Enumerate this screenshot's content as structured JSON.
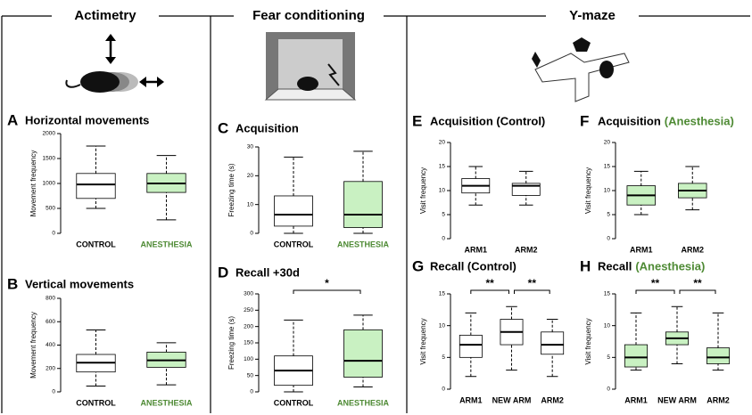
{
  "header": {
    "sections": [
      "Actimetry",
      "Fear conditioning",
      "Y-maze"
    ]
  },
  "chart_data": [
    {
      "type": "box",
      "panel": "A",
      "title": "Horizontal movements",
      "y_label": "Movement frequency",
      "categories": [
        "CONTROL",
        "ANESTHESIA"
      ],
      "category_colors": [
        "#000000",
        "#4e8a34"
      ],
      "ylim": [
        0,
        2000
      ],
      "yticks": [
        0,
        500,
        1000,
        1500,
        2000
      ],
      "boxes": [
        {
          "min": 500,
          "q1": 700,
          "median": 980,
          "q3": 1200,
          "max": 1750,
          "color": "#ffffff"
        },
        {
          "min": 270,
          "q1": 820,
          "median": 1000,
          "q3": 1200,
          "max": 1560,
          "color": "#c9f1c2"
        }
      ]
    },
    {
      "type": "box",
      "panel": "B",
      "title": "Vertical movements",
      "y_label": "Movement frequency",
      "categories": [
        "CONTROL",
        "ANESTHESIA"
      ],
      "category_colors": [
        "#000000",
        "#4e8a34"
      ],
      "ylim": [
        0,
        800
      ],
      "yticks": [
        0,
        200,
        400,
        600,
        800
      ],
      "boxes": [
        {
          "min": 50,
          "q1": 170,
          "median": 250,
          "q3": 320,
          "max": 530,
          "color": "#ffffff"
        },
        {
          "min": 60,
          "q1": 210,
          "median": 270,
          "q3": 340,
          "max": 420,
          "color": "#c9f1c2"
        }
      ]
    },
    {
      "type": "box",
      "panel": "C",
      "title": "Acquisition",
      "y_label": "Freezing time (s)",
      "categories": [
        "CONTROL",
        "ANESTHESIA"
      ],
      "category_colors": [
        "#000000",
        "#4e8a34"
      ],
      "ylim": [
        0,
        30
      ],
      "yticks": [
        0,
        10,
        20,
        30
      ],
      "boxes": [
        {
          "min": 0,
          "q1": 2.5,
          "median": 6.5,
          "q3": 13,
          "max": 26.5,
          "color": "#ffffff"
        },
        {
          "min": 0,
          "q1": 2,
          "median": 6.5,
          "q3": 18,
          "max": 28.5,
          "color": "#c9f1c2"
        }
      ]
    },
    {
      "type": "box",
      "panel": "D",
      "title": "Recall +30d",
      "y_label": "Freezing time (s)",
      "categories": [
        "CONTROL",
        "ANESTHESIA"
      ],
      "category_colors": [
        "#000000",
        "#4e8a34"
      ],
      "ylim": [
        0,
        300
      ],
      "yticks": [
        0,
        50,
        100,
        150,
        200,
        250,
        300
      ],
      "boxes": [
        {
          "min": 0,
          "q1": 20,
          "median": 65,
          "q3": 110,
          "max": 220,
          "color": "#ffffff"
        },
        {
          "min": 15,
          "q1": 45,
          "median": 95,
          "q3": 190,
          "max": 235,
          "color": "#c9f1c2"
        }
      ],
      "annotations": [
        {
          "text": "*",
          "between": [
            "CONTROL",
            "ANESTHESIA"
          ]
        }
      ]
    },
    {
      "type": "box",
      "panel": "E",
      "title": "Acquisition (Control)",
      "y_label": "Visit frequency",
      "categories": [
        "ARM1",
        "ARM2"
      ],
      "ylim": [
        0,
        20
      ],
      "yticks": [
        0,
        5,
        10,
        15,
        20
      ],
      "boxes": [
        {
          "min": 7,
          "q1": 9.5,
          "median": 11,
          "q3": 12.5,
          "max": 15,
          "color": "#ffffff"
        },
        {
          "min": 7,
          "q1": 9,
          "median": 11,
          "q3": 11.5,
          "max": 14,
          "color": "#ffffff"
        }
      ]
    },
    {
      "type": "box",
      "panel": "F",
      "title": "Acquisition",
      "title_suffix": "(Anesthesia)",
      "title_suffix_color": "#4e8a34",
      "y_label": "Visit frequency",
      "categories": [
        "ARM1",
        "ARM2"
      ],
      "ylim": [
        0,
        20
      ],
      "yticks": [
        0,
        5,
        10,
        15,
        20
      ],
      "boxes": [
        {
          "min": 5,
          "q1": 7,
          "median": 9,
          "q3": 11,
          "max": 14,
          "color": "#c9f1c2"
        },
        {
          "min": 6,
          "q1": 8.5,
          "median": 10,
          "q3": 11.5,
          "max": 15,
          "color": "#c9f1c2"
        }
      ]
    },
    {
      "type": "box",
      "panel": "G",
      "title": "Recall (Control)",
      "y_label": "Visit frequency",
      "categories": [
        "ARM1",
        "NEW ARM",
        "ARM2"
      ],
      "ylim": [
        0,
        15
      ],
      "yticks": [
        0,
        5,
        10,
        15
      ],
      "boxes": [
        {
          "min": 2,
          "q1": 5,
          "median": 7,
          "q3": 8.5,
          "max": 12,
          "color": "#ffffff"
        },
        {
          "min": 3,
          "q1": 7,
          "median": 9,
          "q3": 11,
          "max": 13,
          "color": "#ffffff"
        },
        {
          "min": 2,
          "q1": 5.5,
          "median": 7,
          "q3": 9,
          "max": 11,
          "color": "#ffffff"
        }
      ],
      "annotations": [
        {
          "text": "**",
          "between": [
            "ARM1",
            "NEW ARM"
          ]
        },
        {
          "text": "**",
          "between": [
            "NEW ARM",
            "ARM2"
          ]
        }
      ]
    },
    {
      "type": "box",
      "panel": "H",
      "title": "Recall",
      "title_suffix": "(Anesthesia)",
      "title_suffix_color": "#4e8a34",
      "y_label": "Visit frequency",
      "categories": [
        "ARM1",
        "NEW ARM",
        "ARM2"
      ],
      "ylim": [
        0,
        15
      ],
      "yticks": [
        0,
        5,
        10,
        15
      ],
      "boxes": [
        {
          "min": 3,
          "q1": 3.5,
          "median": 5,
          "q3": 7,
          "max": 12,
          "color": "#c9f1c2"
        },
        {
          "min": 4,
          "q1": 7,
          "median": 8,
          "q3": 9,
          "max": 13,
          "color": "#c9f1c2"
        },
        {
          "min": 3,
          "q1": 4,
          "median": 5,
          "q3": 6.5,
          "max": 12,
          "color": "#c9f1c2"
        }
      ],
      "annotations": [
        {
          "text": "**",
          "between": [
            "ARM1",
            "NEW ARM"
          ]
        },
        {
          "text": "**",
          "between": [
            "NEW ARM",
            "ARM2"
          ]
        }
      ]
    }
  ]
}
